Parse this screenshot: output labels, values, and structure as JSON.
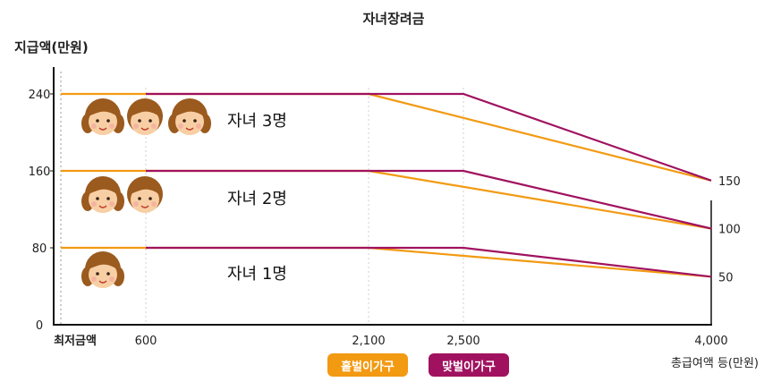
{
  "chart_data": {
    "type": "line",
    "title": "자녀장려금",
    "ylabel": "지급액(만원)",
    "xlabel": "총급여액 등(만원)",
    "ylim": [
      0,
      240
    ],
    "y_ticks": [
      "0",
      "80",
      "160",
      "240"
    ],
    "x_ticks": [
      {
        "label": "최저금액",
        "value": 0
      },
      {
        "label": "600",
        "value": 600
      },
      {
        "label": "2,100",
        "value": 2100
      },
      {
        "label": "2,500",
        "value": 2500
      },
      {
        "label": "4,000",
        "value": 4000
      }
    ],
    "right_labels": [
      {
        "label": "150",
        "value": 150
      },
      {
        "label": "100",
        "value": 100
      },
      {
        "label": "50",
        "value": 50
      }
    ],
    "colors": {
      "single": "#F29A12",
      "dual": "#A0125F"
    },
    "series": [
      {
        "name": "홑벌이가구",
        "group": "자녀 3명",
        "color": "#F29A12",
        "x": [
          0,
          2100,
          4000
        ],
        "y": [
          240,
          240,
          150
        ]
      },
      {
        "name": "맞벌이가구",
        "group": "자녀 3명",
        "color": "#A0125F",
        "x": [
          600,
          2500,
          4000
        ],
        "y": [
          240,
          240,
          150
        ]
      },
      {
        "name": "홑벌이가구",
        "group": "자녀 2명",
        "color": "#F29A12",
        "x": [
          0,
          2100,
          4000
        ],
        "y": [
          160,
          160,
          100
        ]
      },
      {
        "name": "맞벌이가구",
        "group": "자녀 2명",
        "color": "#A0125F",
        "x": [
          600,
          2500,
          4000
        ],
        "y": [
          160,
          160,
          100
        ]
      },
      {
        "name": "홑벌이가구",
        "group": "자녀 1명",
        "color": "#F29A12",
        "x": [
          0,
          2100,
          4000
        ],
        "y": [
          80,
          80,
          50
        ]
      },
      {
        "name": "맞벌이가구",
        "group": "자녀 1명",
        "color": "#A0125F",
        "x": [
          600,
          2500,
          4000
        ],
        "y": [
          80,
          80,
          50
        ]
      }
    ],
    "groups": [
      {
        "label": "자녀 3명",
        "children": 3,
        "y": 240
      },
      {
        "label": "자녀 2명",
        "children": 2,
        "y": 160
      },
      {
        "label": "자녀 1명",
        "children": 1,
        "y": 80
      }
    ],
    "legend": [
      {
        "label": "홑벌이가구",
        "color": "#F29A12"
      },
      {
        "label": "맞벌이가구",
        "color": "#A0125F"
      }
    ],
    "legend_position": "bottom-center",
    "grid": "vertical-dotted"
  }
}
